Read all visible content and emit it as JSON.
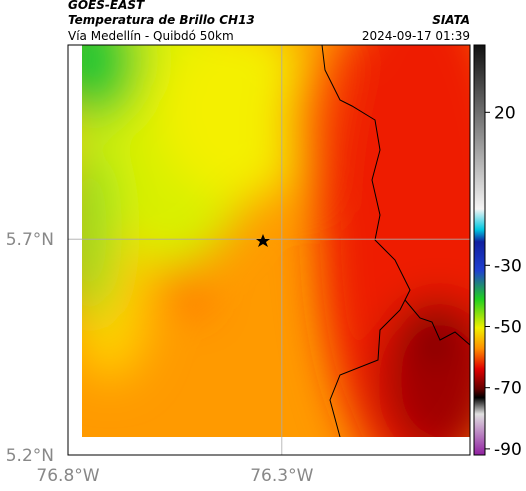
{
  "header": {
    "source": "GOES-EAST",
    "title": "Temperatura de Brillo CH13",
    "subtitle": "Vía Medellín - Quibdó 50km",
    "agency": "SIATA",
    "timestamp": "2024-09-17 01:39"
  },
  "map": {
    "xlim": [
      -76.8,
      -75.86
    ],
    "ylim": [
      5.2,
      6.15
    ],
    "xticks": [
      {
        "value": -76.8,
        "label": "76.8°W"
      },
      {
        "value": -76.3,
        "label": "76.3°W"
      }
    ],
    "yticks": [
      {
        "value": 5.2,
        "label": "5.2°N"
      },
      {
        "value": 5.7,
        "label": "5.7°N"
      }
    ],
    "grid": true
  },
  "colorbar": {
    "clim": [
      -92,
      42
    ],
    "ticks": [
      20,
      -30,
      -50,
      -70,
      -90
    ]
  }
}
